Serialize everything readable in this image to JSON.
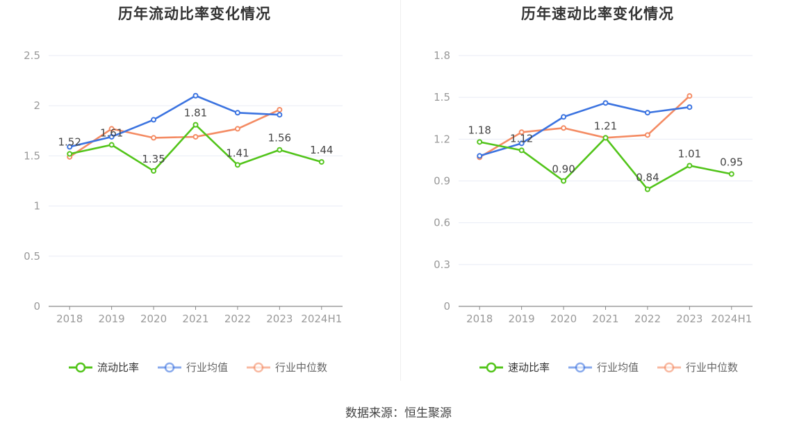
{
  "source_text": "数据来源：恒生聚源",
  "colors": {
    "company": "#52c41a",
    "industry_avg": "#3b73e0",
    "industry_median": "#f48b63",
    "grid": "#e8ebf5",
    "axis": "#888888",
    "tick_text": "#999999"
  },
  "chart_data": [
    {
      "type": "line",
      "title": "历年流动比率变化情况",
      "categories": [
        "2018",
        "2019",
        "2020",
        "2021",
        "2022",
        "2023",
        "2024H1"
      ],
      "ylim": [
        0,
        2.5
      ],
      "yticks": [
        "0",
        "0.5",
        "1",
        "1.5",
        "2",
        "2.5"
      ],
      "series": [
        {
          "name": "流动比率",
          "values": [
            1.52,
            1.61,
            1.35,
            1.81,
            1.41,
            1.56,
            1.44
          ],
          "labels": [
            "1.52",
            "1.61",
            "1.35",
            "1.81",
            "1.41",
            "1.56",
            "1.44"
          ],
          "color_key": "company"
        },
        {
          "name": "行业均值",
          "values": [
            1.59,
            1.69,
            1.86,
            2.1,
            1.93,
            1.91,
            null
          ],
          "color_key": "industry_avg"
        },
        {
          "name": "行业中位数",
          "values": [
            1.49,
            1.77,
            1.68,
            1.69,
            1.77,
            1.96,
            null
          ],
          "color_key": "industry_median"
        }
      ],
      "legend": [
        "流动比率",
        "行业均值",
        "行业中位数"
      ],
      "legend_position": "bottom-center",
      "grid": true
    },
    {
      "type": "line",
      "title": "历年速动比率变化情况",
      "categories": [
        "2018",
        "2019",
        "2020",
        "2021",
        "2022",
        "2023",
        "2024H1"
      ],
      "ylim": [
        0,
        1.8
      ],
      "yticks": [
        "0",
        "0.3",
        "0.6",
        "0.9",
        "1.2",
        "1.5",
        "1.8"
      ],
      "series": [
        {
          "name": "速动比率",
          "values": [
            1.18,
            1.12,
            0.9,
            1.21,
            0.84,
            1.01,
            0.95
          ],
          "labels": [
            "1.18",
            "1.12",
            "0.90",
            "1.21",
            "0.84",
            "1.01",
            "0.95"
          ],
          "color_key": "company"
        },
        {
          "name": "行业均值",
          "values": [
            1.08,
            1.17,
            1.36,
            1.46,
            1.39,
            1.43,
            null
          ],
          "color_key": "industry_avg"
        },
        {
          "name": "行业中位数",
          "values": [
            1.07,
            1.25,
            1.28,
            1.21,
            1.23,
            1.51,
            null
          ],
          "color_key": "industry_median"
        }
      ],
      "legend": [
        "速动比率",
        "行业均值",
        "行业中位数"
      ],
      "legend_position": "bottom-center",
      "grid": true
    }
  ]
}
